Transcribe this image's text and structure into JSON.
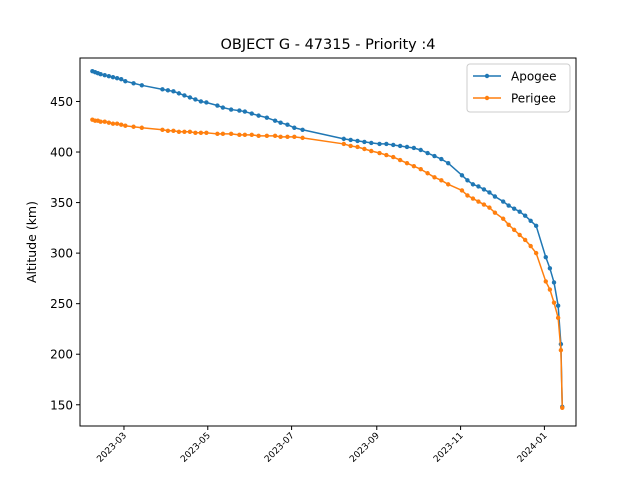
{
  "chart_data": {
    "type": "line",
    "title": "OBJECT G - 47315 - Priority :4",
    "xlabel": "",
    "ylabel": "Altitude (km)",
    "x_ticks": [
      "2023-03",
      "2023-05",
      "2023-07",
      "2023-09",
      "2023-11",
      "2024-01"
    ],
    "y_ticks": [
      "150",
      "200",
      "250",
      "300",
      "350",
      "400",
      "450"
    ],
    "ylim": [
      129,
      493
    ],
    "xlim": [
      "2023-01-28",
      "2024-01-24"
    ],
    "legend_position": "top-right",
    "grid": false,
    "series": [
      {
        "name": "Apogee",
        "color": "#1f77b4",
        "x": [
          "2023-02-06",
          "2023-02-08",
          "2023-02-10",
          "2023-02-12",
          "2023-02-15",
          "2023-02-18",
          "2023-02-21",
          "2023-02-24",
          "2023-02-27",
          "2023-03-02",
          "2023-03-08",
          "2023-03-14",
          "2023-03-29",
          "2023-04-02",
          "2023-04-06",
          "2023-04-10",
          "2023-04-14",
          "2023-04-18",
          "2023-04-22",
          "2023-04-26",
          "2023-04-30",
          "2023-05-08",
          "2023-05-12",
          "2023-05-18",
          "2023-05-24",
          "2023-05-28",
          "2023-06-02",
          "2023-06-07",
          "2023-06-13",
          "2023-06-19",
          "2023-06-23",
          "2023-06-28",
          "2023-07-03",
          "2023-07-09",
          "2023-08-08",
          "2023-08-13",
          "2023-08-18",
          "2023-08-23",
          "2023-08-28",
          "2023-09-03",
          "2023-09-08",
          "2023-09-13",
          "2023-09-18",
          "2023-09-23",
          "2023-09-28",
          "2023-10-03",
          "2023-10-08",
          "2023-10-13",
          "2023-10-18",
          "2023-10-23",
          "2023-11-02",
          "2023-11-06",
          "2023-11-10",
          "2023-11-14",
          "2023-11-18",
          "2023-11-22",
          "2023-11-26",
          "2023-12-02",
          "2023-12-06",
          "2023-12-10",
          "2023-12-14",
          "2023-12-18",
          "2023-12-22",
          "2023-12-26",
          "2024-01-02",
          "2024-01-05",
          "2024-01-08",
          "2024-01-11",
          "2024-01-13",
          "2024-01-14"
        ],
        "values": [
          480,
          479,
          478,
          477,
          476,
          475,
          474,
          473,
          472,
          470,
          468,
          466,
          462,
          461,
          460,
          458,
          456,
          454,
          452,
          450,
          449,
          446,
          444,
          442,
          441,
          440,
          438,
          436,
          434,
          431,
          429,
          427,
          424,
          422,
          413,
          412,
          411,
          410,
          409,
          408,
          408,
          407,
          406,
          405,
          404,
          402,
          399,
          396,
          393,
          389,
          377,
          372,
          368,
          366,
          363,
          360,
          356,
          351,
          347,
          344,
          341,
          337,
          332,
          327,
          296,
          285,
          271,
          248,
          210,
          148
        ]
      },
      {
        "name": "Perigee",
        "color": "#ff7f0e",
        "x": [
          "2023-02-06",
          "2023-02-08",
          "2023-02-10",
          "2023-02-12",
          "2023-02-15",
          "2023-02-18",
          "2023-02-21",
          "2023-02-24",
          "2023-02-27",
          "2023-03-02",
          "2023-03-08",
          "2023-03-14",
          "2023-03-29",
          "2023-04-02",
          "2023-04-06",
          "2023-04-10",
          "2023-04-14",
          "2023-04-18",
          "2023-04-22",
          "2023-04-26",
          "2023-04-30",
          "2023-05-08",
          "2023-05-12",
          "2023-05-18",
          "2023-05-24",
          "2023-05-28",
          "2023-06-02",
          "2023-06-07",
          "2023-06-13",
          "2023-06-19",
          "2023-06-23",
          "2023-06-28",
          "2023-07-03",
          "2023-07-09",
          "2023-08-08",
          "2023-08-13",
          "2023-08-18",
          "2023-08-23",
          "2023-08-28",
          "2023-09-03",
          "2023-09-08",
          "2023-09-13",
          "2023-09-18",
          "2023-09-23",
          "2023-09-28",
          "2023-10-03",
          "2023-10-08",
          "2023-10-13",
          "2023-10-18",
          "2023-10-23",
          "2023-11-02",
          "2023-11-06",
          "2023-11-10",
          "2023-11-14",
          "2023-11-18",
          "2023-11-22",
          "2023-11-26",
          "2023-12-02",
          "2023-12-06",
          "2023-12-10",
          "2023-12-14",
          "2023-12-18",
          "2023-12-22",
          "2023-12-26",
          "2024-01-02",
          "2024-01-05",
          "2024-01-08",
          "2024-01-11",
          "2024-01-13",
          "2024-01-14"
        ],
        "values": [
          432,
          431,
          431,
          430,
          430,
          429,
          428,
          428,
          427,
          426,
          425,
          424,
          422,
          421,
          421,
          420,
          420,
          420,
          419,
          419,
          419,
          418,
          418,
          418,
          417,
          417,
          417,
          416,
          416,
          416,
          415,
          415,
          415,
          414,
          408,
          406,
          405,
          403,
          401,
          399,
          397,
          395,
          392,
          389,
          386,
          383,
          379,
          375,
          372,
          368,
          362,
          357,
          354,
          351,
          348,
          345,
          340,
          334,
          328,
          323,
          318,
          313,
          307,
          300,
          272,
          264,
          251,
          236,
          204,
          147
        ]
      }
    ]
  }
}
